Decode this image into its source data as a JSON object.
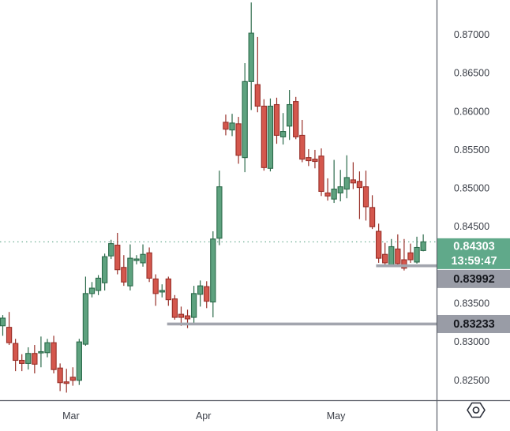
{
  "chart_data": {
    "type": "candlestick",
    "timeframe_visible_months": [
      "Mar",
      "Apr",
      "May"
    ],
    "y_axis": {
      "side": "right",
      "tick_labels": [
        "0.87000",
        "0.86500",
        "0.86000",
        "0.85500",
        "0.85000",
        "0.84500",
        "0.83500",
        "0.83000",
        "0.82500"
      ],
      "tick_values": [
        0.87,
        0.865,
        0.86,
        0.855,
        0.85,
        0.845,
        0.835,
        0.83,
        0.825
      ],
      "range_top": 0.87452,
      "range_bottom": 0.82241
    },
    "x_axis": {
      "tick_labels": [
        "Mar",
        "Apr",
        "May"
      ],
      "tick_candle_index": [
        10.7,
        31.5,
        52.3
      ]
    },
    "last_price": {
      "label": "0.84303",
      "time": "13:59:47",
      "value": 0.84303
    },
    "levels": [
      {
        "label": "0.83992",
        "value": 0.83992,
        "start_candle_index": 58.6
      },
      {
        "label": "0.83233",
        "value": 0.83233,
        "start_candle_index": 25.8
      }
    ],
    "candles": [
      [
        0.8321,
        0.8335,
        0.8308,
        0.8331
      ],
      [
        0.8319,
        0.8339,
        0.8296,
        0.8299
      ],
      [
        0.8298,
        0.8304,
        0.8262,
        0.8276
      ],
      [
        0.8276,
        0.8284,
        0.8262,
        0.8272
      ],
      [
        0.8272,
        0.8293,
        0.8264,
        0.8285
      ],
      [
        0.8285,
        0.8296,
        0.8259,
        0.8271
      ],
      [
        0.8286,
        0.8307,
        0.8267,
        0.8287
      ],
      [
        0.8286,
        0.8304,
        0.828,
        0.8299
      ],
      [
        0.8299,
        0.8308,
        0.8259,
        0.8264
      ],
      [
        0.8266,
        0.8272,
        0.8236,
        0.8247
      ],
      [
        0.8248,
        0.8265,
        0.8234,
        0.8246
      ],
      [
        0.8254,
        0.8267,
        0.8243,
        0.825
      ],
      [
        0.825,
        0.8304,
        0.8244,
        0.83
      ],
      [
        0.8297,
        0.8385,
        0.8295,
        0.8363
      ],
      [
        0.8363,
        0.8378,
        0.8358,
        0.837
      ],
      [
        0.8367,
        0.8387,
        0.8361,
        0.8383
      ],
      [
        0.8377,
        0.8415,
        0.8367,
        0.8411
      ],
      [
        0.8412,
        0.8433,
        0.8408,
        0.8428
      ],
      [
        0.8426,
        0.8442,
        0.8388,
        0.8394
      ],
      [
        0.8397,
        0.8413,
        0.8373,
        0.8378
      ],
      [
        0.8373,
        0.8427,
        0.8367,
        0.8409
      ],
      [
        0.8406,
        0.8413,
        0.8401,
        0.8408
      ],
      [
        0.8403,
        0.8427,
        0.8398,
        0.8414
      ],
      [
        0.8416,
        0.8423,
        0.8378,
        0.8383
      ],
      [
        0.8382,
        0.8388,
        0.8347,
        0.8363
      ],
      [
        0.8365,
        0.8375,
        0.8358,
        0.8367
      ],
      [
        0.8382,
        0.8385,
        0.8347,
        0.8355
      ],
      [
        0.8356,
        0.8361,
        0.8329,
        0.8332
      ],
      [
        0.8336,
        0.8346,
        0.8321,
        0.8332
      ],
      [
        0.8334,
        0.8342,
        0.8318,
        0.833
      ],
      [
        0.8332,
        0.8373,
        0.8322,
        0.8363
      ],
      [
        0.8362,
        0.838,
        0.8346,
        0.8373
      ],
      [
        0.8372,
        0.8379,
        0.8344,
        0.8353
      ],
      [
        0.8352,
        0.8444,
        0.8332,
        0.8434
      ],
      [
        0.8435,
        0.8523,
        0.8426,
        0.8502
      ],
      [
        0.8586,
        0.8596,
        0.8569,
        0.8577
      ],
      [
        0.8576,
        0.8597,
        0.8568,
        0.8585
      ],
      [
        0.8584,
        0.8593,
        0.8532,
        0.8543
      ],
      [
        0.854,
        0.8663,
        0.8521,
        0.8639
      ],
      [
        0.8639,
        0.8742,
        0.8602,
        0.8702
      ],
      [
        0.8635,
        0.8697,
        0.8599,
        0.8607
      ],
      [
        0.8607,
        0.8616,
        0.8523,
        0.8527
      ],
      [
        0.8526,
        0.8617,
        0.8522,
        0.8607
      ],
      [
        0.8609,
        0.8618,
        0.8558,
        0.8569
      ],
      [
        0.8567,
        0.8598,
        0.8557,
        0.8574
      ],
      [
        0.8581,
        0.8628,
        0.8563,
        0.8609
      ],
      [
        0.8613,
        0.8619,
        0.8564,
        0.8567
      ],
      [
        0.8569,
        0.8589,
        0.8534,
        0.8538
      ],
      [
        0.854,
        0.8551,
        0.8529,
        0.8536
      ],
      [
        0.8538,
        0.855,
        0.8526,
        0.8535
      ],
      [
        0.8542,
        0.8552,
        0.849,
        0.8496
      ],
      [
        0.8494,
        0.8513,
        0.8484,
        0.849
      ],
      [
        0.8486,
        0.8537,
        0.8481,
        0.8499
      ],
      [
        0.8494,
        0.8524,
        0.8483,
        0.8502
      ],
      [
        0.8499,
        0.8543,
        0.8487,
        0.8514
      ],
      [
        0.8511,
        0.8534,
        0.8499,
        0.8507
      ],
      [
        0.8509,
        0.8522,
        0.846,
        0.8501
      ],
      [
        0.8502,
        0.8523,
        0.8458,
        0.8476
      ],
      [
        0.8475,
        0.8491,
        0.8447,
        0.845
      ],
      [
        0.8444,
        0.8454,
        0.8403,
        0.8409
      ],
      [
        0.8414,
        0.8429,
        0.8399,
        0.8403
      ],
      [
        0.84,
        0.8434,
        0.8398,
        0.8424
      ],
      [
        0.8421,
        0.844,
        0.8398,
        0.8402
      ],
      [
        0.8407,
        0.8434,
        0.8393,
        0.8396
      ],
      [
        0.8416,
        0.8428,
        0.8403,
        0.8407
      ],
      [
        0.8404,
        0.8437,
        0.8402,
        0.8423
      ],
      [
        0.8419,
        0.844,
        0.8418,
        0.84303
      ]
    ],
    "colors": {
      "up_fill": "#5EA27F",
      "up_stroke": "#2B6A4A",
      "down_fill": "#D4574D",
      "down_stroke": "#982F28",
      "last_price_badge": "#60A98A",
      "last_price_badge_text": "#FFFFFF",
      "price_line": "#4E9C7C",
      "level_line": "#A2A5AE",
      "level_badge": "#999CA6",
      "level_badge_text": "#14161C",
      "axis_text": "#3A3E47",
      "axis_line": "#595D66",
      "icon": "#2A2E39",
      "background": "#FFFFFF"
    },
    "legend_position": "none",
    "grid": false
  }
}
